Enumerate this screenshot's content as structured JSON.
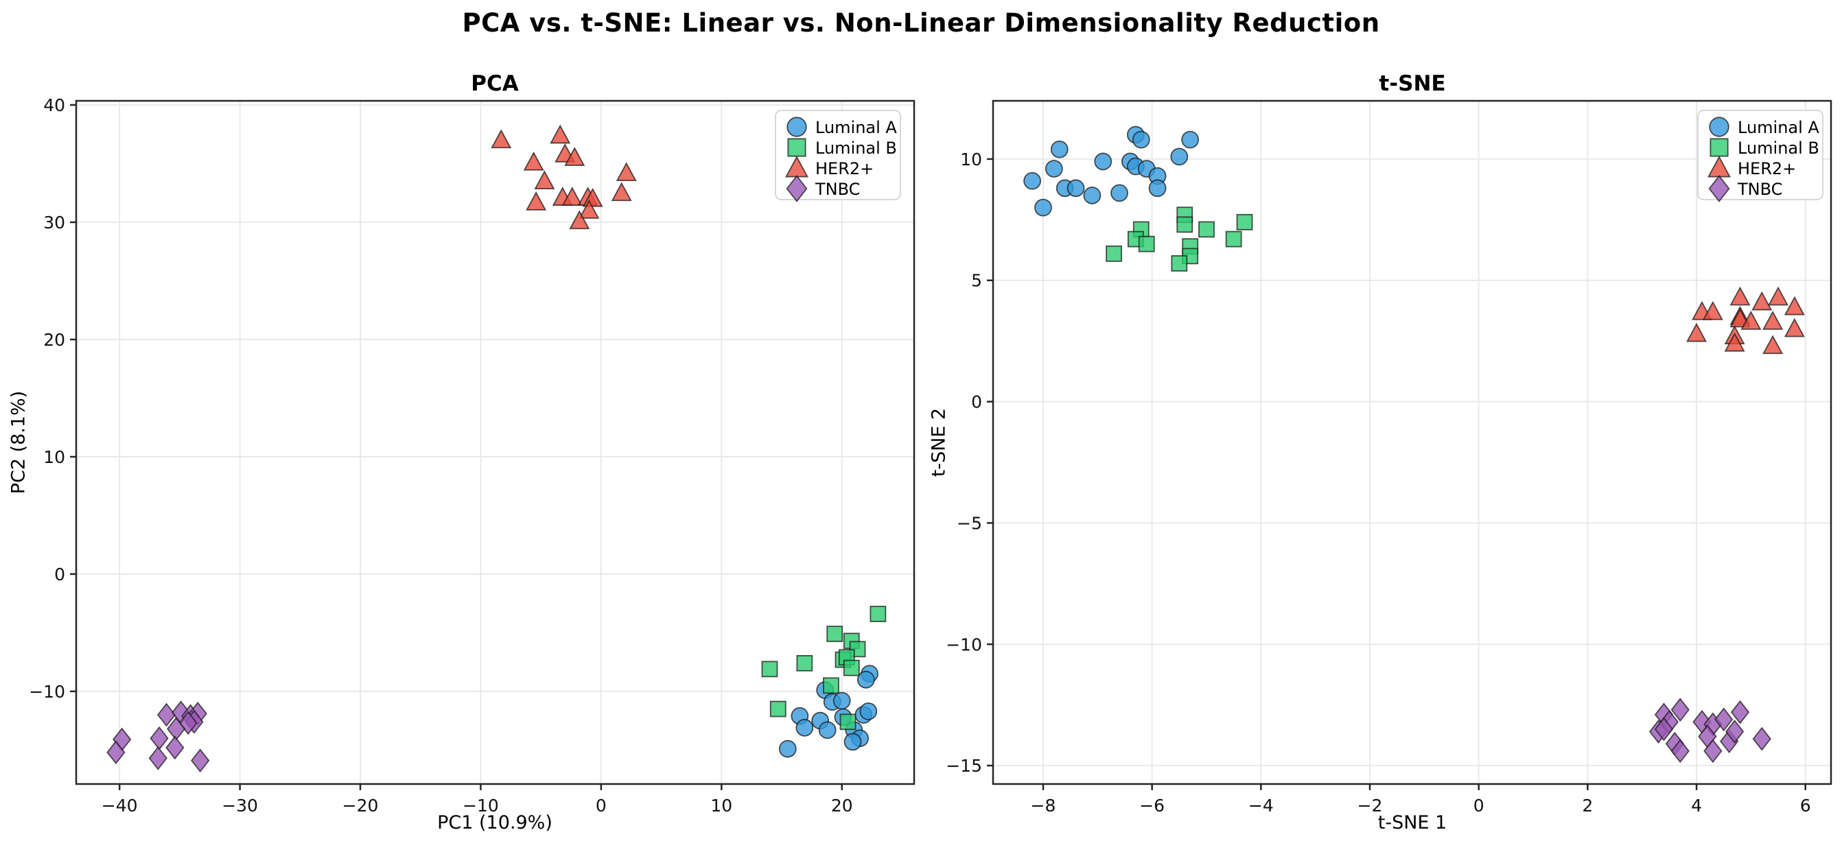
{
  "page": {
    "title": "PCA vs. t-SNE: Linear vs. Non-Linear Dimensionality Reduction"
  },
  "style": {
    "spine_color": "#262626",
    "grid_color": "#e7e7e7",
    "tick_color": "#111111",
    "marker_edge_color": "#1a1a1a",
    "legend_border_color": "#cccccc",
    "legend_bg_color": "#ffffff"
  },
  "legend": {
    "entries": [
      "Luminal A",
      "Luminal B",
      "HER2+",
      "TNBC"
    ]
  },
  "chart_data": [
    {
      "type": "scatter",
      "title": "PCA",
      "xlabel": "PC1 (10.9%)",
      "ylabel": "PC2 (8.1%)",
      "xlim": [
        -43.6,
        26.0
      ],
      "ylim": [
        -17.9,
        40.35
      ],
      "xticks": [
        -40,
        -30,
        -20,
        -10,
        0,
        10,
        20
      ],
      "yticks": [
        40,
        30,
        20,
        10,
        0,
        -10
      ],
      "grid": true,
      "legend_position": "upper right",
      "series": [
        {
          "name": "Luminal A",
          "marker": "circle",
          "color": "#3498db",
          "points": [
            [
              22.3,
              -8.5
            ],
            [
              22.0,
              -9.0
            ],
            [
              18.6,
              -9.9
            ],
            [
              19.2,
              -10.9
            ],
            [
              20.0,
              -10.8
            ],
            [
              16.5,
              -12.1
            ],
            [
              18.2,
              -12.5
            ],
            [
              20.1,
              -12.2
            ],
            [
              21.8,
              -12.0
            ],
            [
              22.2,
              -11.7
            ],
            [
              16.9,
              -13.1
            ],
            [
              18.8,
              -13.3
            ],
            [
              21.0,
              -13.3
            ],
            [
              21.5,
              -14.0
            ],
            [
              20.9,
              -14.3
            ],
            [
              15.5,
              -14.9
            ]
          ]
        },
        {
          "name": "Luminal B",
          "marker": "square",
          "color": "#2ecc71",
          "points": [
            [
              23.0,
              -3.4
            ],
            [
              19.4,
              -5.1
            ],
            [
              20.8,
              -5.7
            ],
            [
              21.3,
              -6.4
            ],
            [
              20.1,
              -7.3
            ],
            [
              20.4,
              -7.1
            ],
            [
              20.8,
              -8.0
            ],
            [
              16.9,
              -7.6
            ],
            [
              14.0,
              -8.1
            ],
            [
              19.1,
              -9.5
            ],
            [
              14.7,
              -11.5
            ],
            [
              20.5,
              -12.6
            ]
          ]
        },
        {
          "name": "HER2+",
          "marker": "triangle",
          "color": "#e74c3c",
          "points": [
            [
              -8.3,
              37.0
            ],
            [
              -3.4,
              37.4
            ],
            [
              -3.0,
              35.8
            ],
            [
              -2.2,
              35.5
            ],
            [
              -5.6,
              35.1
            ],
            [
              -4.7,
              33.5
            ],
            [
              -5.4,
              31.7
            ],
            [
              -3.2,
              32.1
            ],
            [
              -2.4,
              32.1
            ],
            [
              -1.1,
              32.1
            ],
            [
              -0.7,
              32.0
            ],
            [
              -1.0,
              31.0
            ],
            [
              -1.8,
              30.1
            ],
            [
              2.1,
              34.2
            ],
            [
              1.7,
              32.5
            ]
          ]
        },
        {
          "name": "TNBC",
          "marker": "diamond",
          "color": "#9b59b6",
          "points": [
            [
              -39.8,
              -14.1
            ],
            [
              -40.3,
              -15.2
            ],
            [
              -36.1,
              -12.0
            ],
            [
              -34.9,
              -11.8
            ],
            [
              -34.1,
              -12.1
            ],
            [
              -33.5,
              -11.9
            ],
            [
              -33.8,
              -12.6
            ],
            [
              -34.3,
              -12.7
            ],
            [
              -35.3,
              -13.2
            ],
            [
              -36.7,
              -14.0
            ],
            [
              -35.4,
              -14.8
            ],
            [
              -36.8,
              -15.7
            ],
            [
              -33.3,
              -15.9
            ]
          ]
        }
      ]
    },
    {
      "type": "scatter",
      "title": "t-SNE",
      "xlabel": "t-SNE 1",
      "ylabel": "t-SNE 2",
      "xlim": [
        -8.92,
        6.47
      ],
      "ylim": [
        -15.76,
        12.4
      ],
      "xticks": [
        -8,
        -6,
        -4,
        -2,
        0,
        2,
        4,
        6
      ],
      "yticks": [
        10,
        5,
        0,
        -5,
        -10,
        -15
      ],
      "grid": true,
      "legend_position": "upper right",
      "series": [
        {
          "name": "Luminal A",
          "marker": "circle",
          "color": "#3498db",
          "points": [
            [
              -6.3,
              11.0
            ],
            [
              -6.2,
              10.8
            ],
            [
              -5.3,
              10.8
            ],
            [
              -7.7,
              10.4
            ],
            [
              -5.5,
              10.1
            ],
            [
              -6.9,
              9.9
            ],
            [
              -6.4,
              9.9
            ],
            [
              -6.3,
              9.7
            ],
            [
              -6.1,
              9.6
            ],
            [
              -7.8,
              9.6
            ],
            [
              -5.9,
              9.3
            ],
            [
              -8.2,
              9.1
            ],
            [
              -7.6,
              8.8
            ],
            [
              -7.4,
              8.8
            ],
            [
              -7.1,
              8.5
            ],
            [
              -6.6,
              8.6
            ],
            [
              -5.9,
              8.8
            ],
            [
              -8.0,
              8.0
            ]
          ]
        },
        {
          "name": "Luminal B",
          "marker": "square",
          "color": "#2ecc71",
          "points": [
            [
              -5.4,
              7.7
            ],
            [
              -5.4,
              7.3
            ],
            [
              -5.0,
              7.1
            ],
            [
              -4.3,
              7.4
            ],
            [
              -4.5,
              6.7
            ],
            [
              -6.2,
              7.1
            ],
            [
              -6.3,
              6.7
            ],
            [
              -6.1,
              6.5
            ],
            [
              -6.7,
              6.1
            ],
            [
              -5.3,
              6.4
            ],
            [
              -5.3,
              6.0
            ],
            [
              -5.5,
              5.7
            ]
          ]
        },
        {
          "name": "HER2+",
          "marker": "triangle",
          "color": "#e74c3c",
          "points": [
            [
              4.8,
              4.3
            ],
            [
              5.2,
              4.1
            ],
            [
              5.5,
              4.3
            ],
            [
              5.8,
              3.9
            ],
            [
              4.1,
              3.7
            ],
            [
              4.3,
              3.7
            ],
            [
              4.8,
              3.5
            ],
            [
              4.8,
              3.4
            ],
            [
              5.0,
              3.3
            ],
            [
              5.4,
              3.3
            ],
            [
              5.8,
              3.0
            ],
            [
              4.0,
              2.8
            ],
            [
              4.7,
              2.7
            ],
            [
              4.7,
              2.4
            ],
            [
              5.4,
              2.3
            ]
          ]
        },
        {
          "name": "TNBC",
          "marker": "diamond",
          "color": "#9b59b6",
          "points": [
            [
              3.4,
              -12.9
            ],
            [
              3.7,
              -12.7
            ],
            [
              3.5,
              -13.2
            ],
            [
              3.3,
              -13.6
            ],
            [
              3.4,
              -13.5
            ],
            [
              3.6,
              -14.1
            ],
            [
              3.7,
              -14.4
            ],
            [
              4.1,
              -13.2
            ],
            [
              4.3,
              -13.3
            ],
            [
              4.5,
              -13.1
            ],
            [
              4.8,
              -12.8
            ],
            [
              4.2,
              -13.8
            ],
            [
              4.3,
              -14.4
            ],
            [
              4.6,
              -14.0
            ],
            [
              4.7,
              -13.6
            ],
            [
              5.2,
              -13.9
            ]
          ]
        }
      ]
    }
  ]
}
